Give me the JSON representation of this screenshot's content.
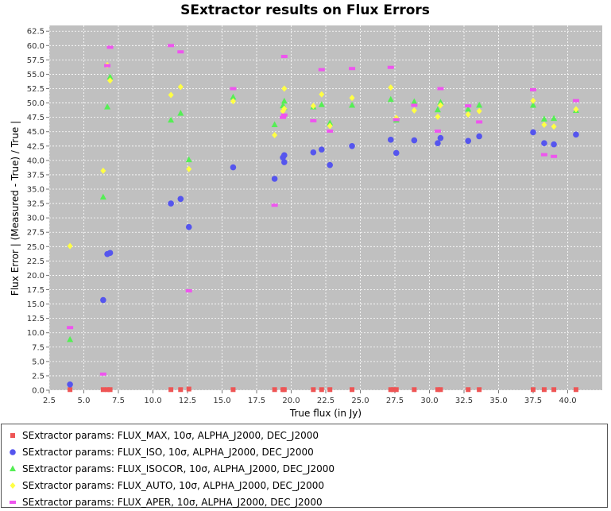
{
  "chart_data": {
    "type": "scatter",
    "title": "SExtractor results on Flux Errors",
    "xlabel": "True flux (in Jy)",
    "ylabel": "Flux Error | (Measured - True) / True |",
    "xlim": [
      2.5,
      42.5
    ],
    "ylim": [
      0,
      63.5
    ],
    "x_ticks": [
      "2.5",
      "5.0",
      "7.5",
      "10.0",
      "12.5",
      "15.0",
      "17.5",
      "20.0",
      "22.5",
      "25.0",
      "27.5",
      "30.0",
      "32.5",
      "35.0",
      "37.5",
      "40.0"
    ],
    "y_ticks": [
      "0.0",
      "2.5",
      "5.0",
      "7.5",
      "10.0",
      "12.5",
      "15.0",
      "17.5",
      "20.0",
      "22.5",
      "25.0",
      "27.5",
      "30.0",
      "32.5",
      "35.0",
      "37.5",
      "40.0",
      "42.5",
      "45.0",
      "47.5",
      "50.0",
      "52.5",
      "55.0",
      "57.5",
      "60.0",
      "62.5"
    ],
    "grid": true,
    "legend_position": "bottom",
    "series": [
      {
        "name": "SExtractor params: FLUX_MAX, 10σ, ALPHA_J2000, DEC_J2000",
        "marker": "square",
        "color": "#ee5555",
        "points": [
          [
            4.0,
            0.1
          ],
          [
            6.4,
            0.1
          ],
          [
            6.7,
            0.1
          ],
          [
            6.9,
            0.1
          ],
          [
            11.3,
            0.1
          ],
          [
            12.0,
            0.1
          ],
          [
            12.6,
            0.2
          ],
          [
            15.8,
            0.1
          ],
          [
            18.8,
            0.1
          ],
          [
            19.4,
            0.1
          ],
          [
            19.5,
            0.1
          ],
          [
            21.6,
            0.1
          ],
          [
            22.2,
            0.1
          ],
          [
            22.8,
            0.1
          ],
          [
            24.4,
            0.1
          ],
          [
            27.2,
            0.1
          ],
          [
            27.4,
            0.1
          ],
          [
            27.6,
            0.1
          ],
          [
            28.9,
            0.1
          ],
          [
            30.6,
            0.1
          ],
          [
            30.8,
            0.1
          ],
          [
            32.8,
            0.1
          ],
          [
            33.6,
            0.1
          ],
          [
            37.5,
            0.1
          ],
          [
            38.3,
            0.1
          ],
          [
            39.0,
            0.1
          ],
          [
            40.6,
            0.1
          ]
        ]
      },
      {
        "name": "SExtractor params: FLUX_ISO, 10σ, ALPHA_J2000, DEC_J2000",
        "marker": "circle",
        "color": "#5555ee",
        "points": [
          [
            4.0,
            1.0
          ],
          [
            6.4,
            15.7
          ],
          [
            6.7,
            23.7
          ],
          [
            6.9,
            23.9
          ],
          [
            11.3,
            32.5
          ],
          [
            12.0,
            33.3
          ],
          [
            12.6,
            28.4
          ],
          [
            15.8,
            38.8
          ],
          [
            18.8,
            36.8
          ],
          [
            19.4,
            40.5
          ],
          [
            19.5,
            39.7
          ],
          [
            19.5,
            40.9
          ],
          [
            21.6,
            41.4
          ],
          [
            22.2,
            41.9
          ],
          [
            22.8,
            39.2
          ],
          [
            24.4,
            42.5
          ],
          [
            27.2,
            43.6
          ],
          [
            27.6,
            41.3
          ],
          [
            28.9,
            43.5
          ],
          [
            30.6,
            43.0
          ],
          [
            30.8,
            43.9
          ],
          [
            32.8,
            43.4
          ],
          [
            33.6,
            44.2
          ],
          [
            37.5,
            44.9
          ],
          [
            38.3,
            43.0
          ],
          [
            39.0,
            42.8
          ],
          [
            40.6,
            44.5
          ]
        ]
      },
      {
        "name": "SExtractor params: FLUX_ISOCOR, 10σ, ALPHA_J2000, DEC_J2000",
        "marker": "triangle",
        "color": "#55ee55",
        "points": [
          [
            4.0,
            8.8
          ],
          [
            6.4,
            33.6
          ],
          [
            6.7,
            49.3
          ],
          [
            6.9,
            54.5
          ],
          [
            11.3,
            47.0
          ],
          [
            12.0,
            48.2
          ],
          [
            12.6,
            40.1
          ],
          [
            15.8,
            51.0
          ],
          [
            18.8,
            46.2
          ],
          [
            19.4,
            49.5
          ],
          [
            19.5,
            50.3
          ],
          [
            19.5,
            49.2
          ],
          [
            21.6,
            49.3
          ],
          [
            22.2,
            49.7
          ],
          [
            22.8,
            46.5
          ],
          [
            24.4,
            49.6
          ],
          [
            27.2,
            50.6
          ],
          [
            27.6,
            47.0
          ],
          [
            28.9,
            50.2
          ],
          [
            30.6,
            48.8
          ],
          [
            30.8,
            50.1
          ],
          [
            32.8,
            48.9
          ],
          [
            33.6,
            49.6
          ],
          [
            37.5,
            49.6
          ],
          [
            38.3,
            47.2
          ],
          [
            39.0,
            47.3
          ],
          [
            40.6,
            48.7
          ]
        ]
      },
      {
        "name": "SExtractor params: FLUX_AUTO, 10σ, ALPHA_J2000, DEC_J2000",
        "marker": "diamond",
        "color": "#ffff44",
        "points": [
          [
            4.0,
            25.1
          ],
          [
            6.4,
            38.2
          ],
          [
            6.7,
            56.6
          ],
          [
            6.9,
            53.9
          ],
          [
            11.3,
            51.4
          ],
          [
            12.0,
            52.8
          ],
          [
            12.6,
            38.5
          ],
          [
            15.8,
            50.3
          ],
          [
            18.8,
            44.4
          ],
          [
            19.4,
            48.6
          ],
          [
            19.5,
            52.5
          ],
          [
            19.5,
            49.0
          ],
          [
            21.6,
            49.5
          ],
          [
            22.2,
            51.5
          ],
          [
            22.8,
            46.0
          ],
          [
            24.4,
            50.9
          ],
          [
            27.2,
            52.7
          ],
          [
            27.6,
            47.4
          ],
          [
            28.9,
            48.7
          ],
          [
            30.6,
            47.6
          ],
          [
            30.8,
            49.6
          ],
          [
            32.8,
            48.0
          ],
          [
            33.6,
            48.6
          ],
          [
            37.5,
            50.4
          ],
          [
            38.3,
            46.2
          ],
          [
            39.0,
            45.9
          ],
          [
            40.6,
            48.9
          ]
        ]
      },
      {
        "name": "SExtractor params: FLUX_APER, 10σ, ALPHA_J2000, DEC_J2000",
        "marker": "bar",
        "color": "#ee55ee",
        "points": [
          [
            4.0,
            10.9
          ],
          [
            6.4,
            2.8
          ],
          [
            6.7,
            56.5
          ],
          [
            6.9,
            59.7
          ],
          [
            11.3,
            60.0
          ],
          [
            12.0,
            58.9
          ],
          [
            12.6,
            17.3
          ],
          [
            15.8,
            52.5
          ],
          [
            18.8,
            32.2
          ],
          [
            19.4,
            47.5
          ],
          [
            19.5,
            58.1
          ],
          [
            19.5,
            47.9
          ],
          [
            21.6,
            46.9
          ],
          [
            22.2,
            55.8
          ],
          [
            22.8,
            45.1
          ],
          [
            24.4,
            56.0
          ],
          [
            27.2,
            56.2
          ],
          [
            27.6,
            47.1
          ],
          [
            28.9,
            49.6
          ],
          [
            30.6,
            45.1
          ],
          [
            30.8,
            52.5
          ],
          [
            32.8,
            49.5
          ],
          [
            33.6,
            46.7
          ],
          [
            37.5,
            52.3
          ],
          [
            38.3,
            41.0
          ],
          [
            39.0,
            40.7
          ],
          [
            40.6,
            50.4
          ]
        ]
      }
    ]
  }
}
